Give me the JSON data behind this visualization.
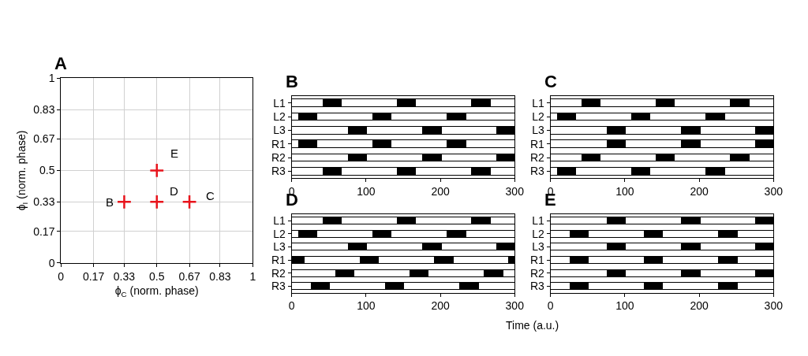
{
  "chart_data": [
    {
      "type": "scatter",
      "title": "A",
      "xlabel": "ϕ$_{C}$ (norm. phase)",
      "ylabel": "ϕ$_{I}$ (norm. phase)",
      "xlim": [
        0,
        1
      ],
      "ylim": [
        0,
        1
      ],
      "xticks": [
        0,
        0.17,
        0.33,
        0.5,
        0.67,
        0.83,
        1
      ],
      "yticks": [
        0,
        0.17,
        0.33,
        0.5,
        0.67,
        0.83,
        1
      ],
      "grid": true,
      "marker": "cross",
      "series": [
        {
          "color": "#e8141c",
          "x": [
            0.33,
            0.5,
            0.67,
            0.5
          ],
          "values": [
            0.33,
            0.33,
            0.33,
            0.5
          ]
        }
      ],
      "annotations": [
        {
          "text": "B",
          "x": 0.33,
          "y": 0.33
        },
        "C",
        {
          "text": "D",
          "x": 0.67,
          "y": 0.33
        },
        {
          "text": "E",
          "x": 0.5,
          "y": 0.5
        }
      ]
    },
    {
      "type": "bar",
      "title": "B",
      "orientation": "horizontal",
      "stacked": true,
      "categories": [
        "L1",
        "L2",
        "L3",
        "R1",
        "R2",
        "R3"
      ],
      "xlim": [
        0,
        300
      ],
      "xticks": [
        0,
        100,
        200,
        300
      ],
      "series": [
        {
          "color": "#ffffff",
          "values": [
            42,
            9,
            76,
            9,
            76,
            42
          ]
        },
        {
          "color": "#000000",
          "values": [
            25,
            25,
            25,
            25,
            25,
            25
          ]
        },
        {
          "color": "#ffffff",
          "values": [
            75,
            75,
            75,
            75,
            75,
            75
          ]
        },
        {
          "color": "#000000",
          "values": [
            25,
            25,
            25,
            25,
            25,
            25
          ]
        },
        {
          "color": "#ffffff",
          "values": [
            75,
            75,
            75,
            75,
            75,
            75
          ]
        },
        {
          "color": "#000000",
          "values": [
            25,
            25,
            24,
            25,
            24,
            25
          ]
        },
        {
          "color": "#ffffff",
          "values": [
            33,
            66,
            null,
            66,
            null,
            33
          ]
        }
      ]
    },
    {
      "type": "bar",
      "title": "C",
      "orientation": "horizontal",
      "stacked": true,
      "categories": [
        "L1",
        "L2",
        "L3",
        "R1",
        "R2",
        "R3"
      ],
      "xlim": [
        0,
        300
      ],
      "xticks": [
        0,
        100,
        200,
        300
      ],
      "series": [
        {
          "color": "#ffffff",
          "values": [
            42,
            9,
            76,
            76,
            42,
            9
          ]
        },
        {
          "color": "#000000",
          "values": [
            25,
            25,
            25,
            25,
            25,
            25
          ]
        },
        {
          "color": "#ffffff",
          "values": [
            75,
            75,
            75,
            75,
            75,
            75
          ]
        },
        {
          "color": "#000000",
          "values": [
            25,
            25,
            25,
            25,
            25,
            25
          ]
        },
        {
          "color": "#ffffff",
          "values": [
            75,
            75,
            75,
            75,
            75,
            75
          ]
        },
        {
          "color": "#000000",
          "values": [
            25,
            25,
            24,
            24,
            25,
            25
          ]
        },
        {
          "color": "#ffffff",
          "values": [
            33,
            66,
            null,
            null,
            33,
            66
          ]
        }
      ]
    },
    {
      "type": "bar",
      "title": "D",
      "xlabel": "Time (a.u.)",
      "orientation": "horizontal",
      "stacked": true,
      "categories": [
        "L1",
        "L2",
        "L3",
        "R1",
        "R2",
        "R3"
      ],
      "xlim": [
        0,
        300
      ],
      "xticks": [
        0,
        100,
        200,
        300
      ],
      "series": [
        {
          "color": "#ffffff",
          "values": [
            42,
            9,
            76,
            0,
            59,
            26
          ]
        },
        {
          "color": "#000000",
          "values": [
            25,
            25,
            25,
            17,
            25,
            25
          ]
        },
        {
          "color": "#ffffff",
          "values": [
            75,
            75,
            75,
            75,
            75,
            75
          ]
        },
        {
          "color": "#000000",
          "values": [
            25,
            25,
            25,
            25,
            25,
            25
          ]
        },
        {
          "color": "#ffffff",
          "values": [
            75,
            75,
            75,
            75,
            75,
            75
          ]
        },
        {
          "color": "#000000",
          "values": [
            25,
            25,
            24,
            25,
            25,
            25
          ]
        },
        {
          "color": "#ffffff",
          "values": [
            33,
            66,
            null,
            75,
            16,
            49
          ]
        },
        {
          "color": "#000000",
          "values": [
            null,
            null,
            null,
            8,
            null,
            null
          ]
        }
      ]
    },
    {
      "type": "bar",
      "title": "E",
      "orientation": "horizontal",
      "stacked": true,
      "categories": [
        "L1",
        "L2",
        "L3",
        "R1",
        "R2",
        "R3"
      ],
      "xlim": [
        0,
        300
      ],
      "xticks": [
        0,
        100,
        200,
        300
      ],
      "series": [
        {
          "color": "#ffffff",
          "values": [
            76,
            26,
            76,
            26,
            76,
            26
          ]
        },
        {
          "color": "#000000",
          "values": [
            25,
            25,
            25,
            25,
            25,
            25
          ]
        },
        {
          "color": "#ffffff",
          "values": [
            75,
            75,
            75,
            75,
            75,
            75
          ]
        },
        {
          "color": "#000000",
          "values": [
            25,
            25,
            25,
            25,
            25,
            25
          ]
        },
        {
          "color": "#ffffff",
          "values": [
            75,
            75,
            75,
            75,
            75,
            75
          ]
        },
        {
          "color": "#000000",
          "values": [
            24,
            25,
            24,
            25,
            24,
            25
          ]
        },
        {
          "color": "#ffffff",
          "values": [
            null,
            49,
            null,
            49,
            null,
            49
          ]
        }
      ]
    }
  ]
}
